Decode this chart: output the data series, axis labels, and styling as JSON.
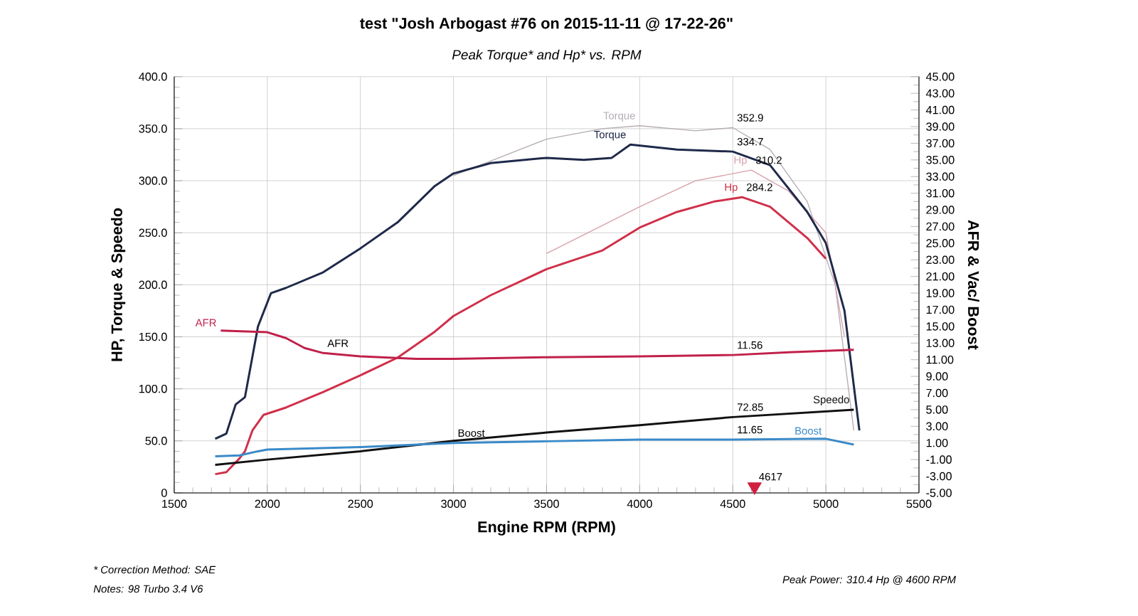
{
  "chart_data": {
    "type": "line",
    "title": "test \"Josh Arbogast #76 on 2015-11-11 @ 17-22-26\"",
    "subtitle": "Peak Torque* and Hp* vs. RPM",
    "xlabel": "Engine RPM (RPM)",
    "ylabel": "HP, Torque & Speedo",
    "y2label": "AFR & Vac/ Boost",
    "xlim": [
      1500,
      5500
    ],
    "xticks": [
      1500,
      2000,
      2500,
      3000,
      3500,
      4000,
      4500,
      5000,
      5500
    ],
    "ylim": [
      0,
      400
    ],
    "yticks": [
      0,
      {
        "value": 50,
        "label": "50.0"
      },
      {
        "value": 100,
        "label": "100.0"
      },
      {
        "value": 150,
        "label": "150.0"
      },
      {
        "value": 200,
        "label": "200.0"
      },
      {
        "value": 250,
        "label": "250.0"
      },
      {
        "value": 300,
        "label": "300.0"
      },
      {
        "value": 350,
        "label": "350.0"
      },
      {
        "value": 400,
        "label": "400.0"
      }
    ],
    "y2lim": [
      -5,
      45
    ],
    "y2ticks": [
      {
        "value": -5,
        "label": "-5.00"
      },
      {
        "value": -3,
        "label": "-3.00"
      },
      {
        "value": -1,
        "label": "-1.00"
      },
      {
        "value": 1,
        "label": "1.00"
      },
      {
        "value": 3,
        "label": "3.00"
      },
      {
        "value": 5,
        "label": "5.00"
      },
      {
        "value": 7,
        "label": "7.00"
      },
      {
        "value": 9,
        "label": "9.00"
      },
      {
        "value": 11,
        "label": "11.00"
      },
      {
        "value": 13,
        "label": "13.00"
      },
      {
        "value": 15,
        "label": "15.00"
      },
      {
        "value": 17,
        "label": "17.00"
      },
      {
        "value": 19,
        "label": "19.00"
      },
      {
        "value": 21,
        "label": "21.00"
      },
      {
        "value": 23,
        "label": "23.00"
      },
      {
        "value": 25,
        "label": "25.00"
      },
      {
        "value": 27,
        "label": "27.00"
      },
      {
        "value": 29,
        "label": "29.00"
      },
      {
        "value": 31,
        "label": "31.00"
      },
      {
        "value": 33,
        "label": "33.00"
      },
      {
        "value": 35,
        "label": "35.00"
      },
      {
        "value": 37,
        "label": "37.00"
      },
      {
        "value": 39,
        "label": "39.00"
      },
      {
        "value": 41,
        "label": "41.00"
      },
      {
        "value": 43,
        "label": "43.00"
      },
      {
        "value": 45,
        "label": "45.00"
      }
    ],
    "grid": true,
    "series": [
      {
        "name": "Torque",
        "color": "#b4acb4",
        "x": [
          3000,
          3500,
          3800,
          4000,
          4300,
          4500,
          4700,
          4900,
          5050,
          5150
        ],
        "values": [
          305,
          340,
          350,
          352.9,
          348,
          351,
          330,
          280,
          200,
          60
        ]
      },
      {
        "name": "Hp",
        "color": "#d8a0aa",
        "x": [
          3500,
          4000,
          4300,
          4600,
          4800,
          5000,
          5100
        ],
        "values": [
          230,
          275,
          300,
          310.2,
          290,
          250,
          150
        ]
      },
      {
        "name": "Torque",
        "color": "#1f2a4a",
        "x": [
          1720,
          1780,
          1830,
          1880,
          1950,
          2020,
          2100,
          2300,
          2500,
          2700,
          2900,
          3000,
          3200,
          3500,
          3700,
          3850,
          3950,
          4200,
          4500,
          4700,
          4900,
          5000,
          5100,
          5180
        ],
        "values": [
          52,
          57,
          85,
          92,
          160,
          192,
          197,
          212,
          235,
          260,
          295,
          307,
          317,
          322,
          320,
          322,
          334.7,
          330,
          328,
          315,
          270,
          240,
          175,
          60
        ]
      },
      {
        "name": "Hp",
        "color": "#d0304a",
        "x": [
          1720,
          1780,
          1850,
          1880,
          1920,
          1980,
          2100,
          2300,
          2500,
          2700,
          2900,
          3000,
          3200,
          3500,
          3800,
          4000,
          4200,
          4400,
          4550,
          4700,
          4900,
          5000
        ],
        "values": [
          18,
          20,
          33,
          40,
          60,
          75,
          82,
          97,
          113,
          130,
          155,
          170,
          190,
          215,
          233,
          255,
          270,
          280,
          284.2,
          275,
          245,
          225
        ]
      },
      {
        "name": "Speedo",
        "color": "#111111",
        "x": [
          1720,
          2000,
          2500,
          3000,
          3500,
          4000,
          4500,
          5150
        ],
        "values": [
          27,
          32,
          40,
          50,
          58,
          65,
          72.85,
          80
        ]
      },
      {
        "name": "AFR",
        "color": "#c0204a",
        "axis": "y2",
        "x": [
          1750,
          2000,
          2100,
          2200,
          2300,
          2500,
          2800,
          3000,
          3500,
          4000,
          4500,
          4800,
          5150
        ],
        "values": [
          14.5,
          14.3,
          13.6,
          12.4,
          11.8,
          11.4,
          11.1,
          11.1,
          11.3,
          11.4,
          11.56,
          11.9,
          12.2
        ]
      },
      {
        "name": "Boost",
        "color": "#3a8ac8",
        "axis": "y2",
        "x": [
          1720,
          1850,
          1950,
          2000,
          2500,
          3000,
          3500,
          4000,
          4500,
          5000,
          5150
        ],
        "values": [
          -0.6,
          -0.5,
          0.0,
          0.2,
          0.5,
          1.0,
          1.2,
          1.4,
          1.4,
          1.5,
          0.8
        ]
      },
      {
        "type": "scatter",
        "marker": "triangle",
        "color": "#d02040",
        "x": [
          4617
        ],
        "values": [
          6
        ]
      }
    ],
    "annotations": [
      {
        "text": "352.9",
        "x": 4500,
        "y": 351
      },
      {
        "text": "334.7",
        "x": 4500,
        "y": 328
      },
      {
        "text": "310.2",
        "x": 4600,
        "y": 310.2
      },
      {
        "text": "284.2",
        "x": 4550,
        "y": 284.2
      },
      {
        "text": "AFR",
        "x": 2300,
        "y": 134.4
      },
      {
        "text": "11.56",
        "x": 4500,
        "y": 132.5
      },
      {
        "text": "72.85",
        "x": 4500,
        "y": 72.85
      },
      {
        "text": "Boost",
        "x": 3000,
        "y": 48
      },
      {
        "text": "11.65",
        "x": 4500,
        "y": 51.2
      },
      {
        "text": "4617",
        "x": 4617,
        "y": 6
      },
      "* Correction Method: SAE",
      "Notes: 98 Turbo 3.4 V6",
      "Peak Power: 310.4 Hp @ 4600 RPM"
    ]
  }
}
